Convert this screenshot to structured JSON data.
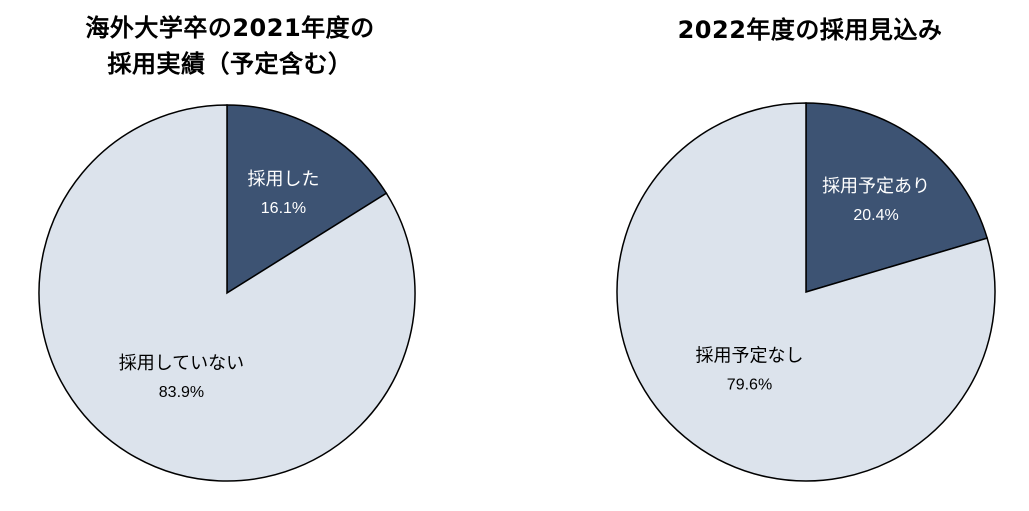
{
  "chart_data": [
    {
      "type": "pie",
      "title_lines": [
        "海外大学卒の2021年度の",
        "採用実績（予定含む）"
      ],
      "slices": [
        {
          "label": "採用した",
          "value": 16.1,
          "display": "16.1%",
          "color": "#3d5373"
        },
        {
          "label": "採用していない",
          "value": 83.9,
          "display": "83.9%",
          "color": "#dce3ec"
        }
      ],
      "start_angle_deg": 0,
      "direction": "clockwise",
      "legend": "none"
    },
    {
      "type": "pie",
      "title_lines": [
        "2022年度の採用見込み"
      ],
      "slices": [
        {
          "label": "採用予定あり",
          "value": 20.4,
          "display": "20.4%",
          "color": "#3d5373"
        },
        {
          "label": "採用予定なし",
          "value": 79.6,
          "display": "79.6%",
          "color": "#dce3ec"
        }
      ],
      "start_angle_deg": 0,
      "direction": "clockwise",
      "legend": "none"
    }
  ],
  "colors": {
    "accent": "#3d5373",
    "background_slice": "#dce3ec",
    "outline": "#000000"
  }
}
